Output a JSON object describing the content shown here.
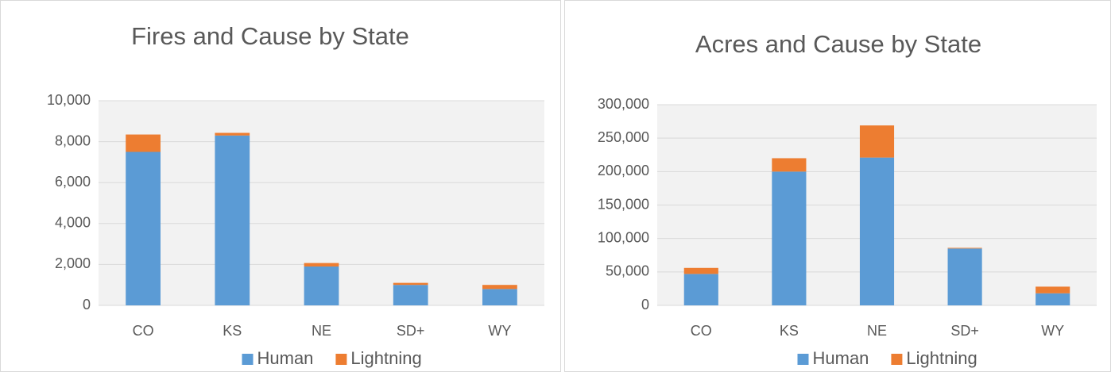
{
  "chart_data": [
    {
      "type": "stacked_bar",
      "title": "Fires and Cause by State",
      "categories": [
        "CO",
        "KS",
        "NE",
        "SD+",
        "WY"
      ],
      "series": [
        {
          "name": "Human",
          "color": "#5b9bd5",
          "values": [
            7500,
            8300,
            1900,
            1000,
            800
          ]
        },
        {
          "name": "Lightning",
          "color": "#ed7d31",
          "values": [
            850,
            130,
            170,
            100,
            200
          ]
        }
      ],
      "ylim": [
        0,
        10000
      ],
      "yticks": [
        0,
        {
          "value": 2000,
          "label": "2,000"
        },
        {
          "value": 4000,
          "label": "4,000"
        },
        {
          "value": 6000,
          "label": "6,000"
        },
        {
          "value": 8000,
          "label": "8,000"
        },
        {
          "value": 10000,
          "label": "10,000"
        }
      ],
      "grid": true,
      "legend": "bottom"
    },
    {
      "type": "stacked_bar",
      "title": "Acres and Cause by State",
      "categories": [
        "CO",
        "KS",
        "NE",
        "SD+",
        "WY"
      ],
      "series": [
        {
          "name": "Human",
          "color": "#5b9bd5",
          "values": [
            47000,
            200000,
            221000,
            85000,
            18000
          ]
        },
        {
          "name": "Lightning",
          "color": "#ed7d31",
          "values": [
            9000,
            20000,
            48000,
            1000,
            10000
          ]
        }
      ],
      "ylim": [
        0,
        300000
      ],
      "yticks": [
        0,
        {
          "value": 50000,
          "label": "50,000"
        },
        {
          "value": 100000,
          "label": "100,000"
        },
        {
          "value": 150000,
          "label": "150,000"
        },
        {
          "value": 200000,
          "label": "200,000"
        },
        {
          "value": 250000,
          "label": "250,000"
        },
        {
          "value": 300000,
          "label": "300,000"
        }
      ],
      "grid": true,
      "legend": "bottom"
    }
  ]
}
